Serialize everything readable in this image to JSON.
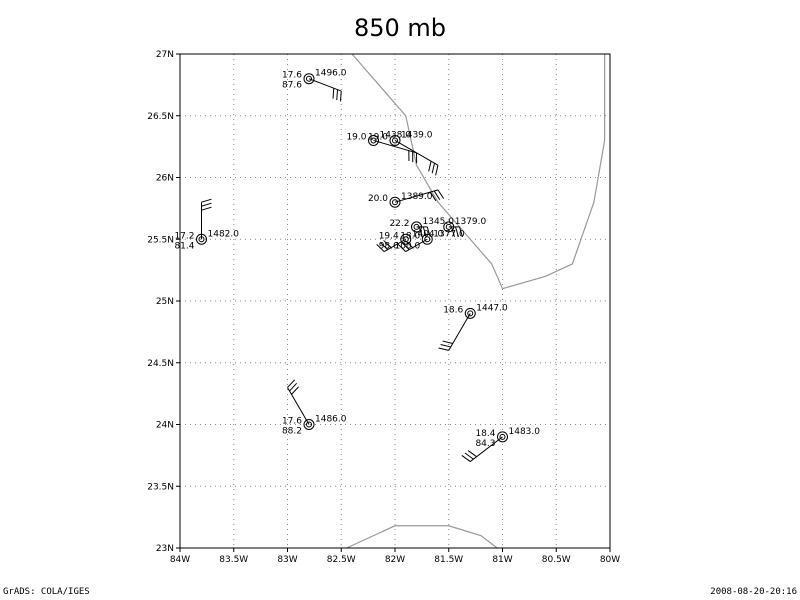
{
  "title": "850 mb",
  "footer": {
    "left": "GrADS: COLA/IGES",
    "right": "2008-08-20-20:16"
  },
  "axes": {
    "lon_ticks": [
      "84W",
      "83.5W",
      "83W",
      "82.5W",
      "82W",
      "81.5W",
      "81W",
      "80.5W",
      "80W"
    ],
    "lat_ticks": [
      "23N",
      "23.5N",
      "24N",
      "24.5N",
      "25N",
      "25.5N",
      "26N",
      "26.5N",
      "27N"
    ],
    "lon_range": [
      -84,
      -80
    ],
    "lat_range": [
      23,
      27
    ],
    "grid": true
  },
  "colors": {
    "coast": "#999999",
    "grid": "#888888",
    "ink": "#000000"
  },
  "stations": [
    {
      "lon": -82.8,
      "lat": 26.8,
      "left_top": "17.6",
      "left_bottom": "87.6",
      "right": "1496.0",
      "wind_to": [
        -82.5,
        26.7
      ]
    },
    {
      "lon": -82.2,
      "lat": 26.3,
      "left_top": "19.0",
      "left_bottom": "",
      "right": "1438.0",
      "wind_to": [
        -81.8,
        26.2
      ]
    },
    {
      "lon": -82.0,
      "lat": 26.3,
      "left_top": "19.0",
      "left_bottom": "",
      "right": "1439.0",
      "wind_to": [
        -81.6,
        26.1
      ]
    },
    {
      "lon": -82.0,
      "lat": 25.8,
      "left_top": "20.0",
      "left_bottom": "",
      "right": "1389.0",
      "wind_to": [
        -81.6,
        25.9
      ]
    },
    {
      "lon": -81.8,
      "lat": 25.6,
      "left_top": "22.2",
      "left_bottom": "",
      "right": "1345.0",
      "wind_to": [
        -81.7,
        25.6
      ]
    },
    {
      "lon": -81.5,
      "lat": 25.6,
      "left_top": "",
      "left_bottom": "",
      "right": "1379.0",
      "wind_to": [
        -81.4,
        25.6
      ]
    },
    {
      "lon": -81.9,
      "lat": 25.5,
      "left_top": "19.4",
      "left_bottom": "98.0",
      "right": "1404.0",
      "wind_to": [
        -82.1,
        25.4
      ]
    },
    {
      "lon": -81.7,
      "lat": 25.5,
      "left_top": "18.0",
      "left_bottom": "100.0",
      "right": "1377.0",
      "wind_to": [
        -81.9,
        25.4
      ]
    },
    {
      "lon": -83.8,
      "lat": 25.5,
      "left_top": "17.2",
      "left_bottom": "81.4",
      "right": "1482.0",
      "wind_to": [
        -83.8,
        25.8
      ]
    },
    {
      "lon": -81.3,
      "lat": 24.9,
      "left_top": "18.6",
      "left_bottom": "",
      "right": "1447.0",
      "wind_to": [
        -81.5,
        24.6
      ]
    },
    {
      "lon": -82.8,
      "lat": 24.0,
      "left_top": "17.6",
      "left_bottom": "88.2",
      "right": "1486.0",
      "wind_to": [
        -83.0,
        24.3
      ]
    },
    {
      "lon": -81.0,
      "lat": 23.9,
      "left_top": "18.4",
      "left_bottom": "84.3",
      "right": "1483.0",
      "wind_to": [
        -81.3,
        23.7
      ]
    }
  ],
  "coastlines": [
    [
      [
        -82.4,
        27.0
      ],
      [
        -82.1,
        26.7
      ],
      [
        -81.9,
        26.5
      ],
      [
        -81.8,
        26.1
      ],
      [
        -81.6,
        25.8
      ],
      [
        -81.3,
        25.5
      ],
      [
        -81.1,
        25.3
      ],
      [
        -81.0,
        25.1
      ],
      [
        -80.6,
        25.2
      ],
      [
        -80.35,
        25.3
      ],
      [
        -80.15,
        25.8
      ],
      [
        -80.05,
        26.3
      ],
      [
        -80.05,
        27.0
      ]
    ],
    [
      [
        -82.45,
        23.0
      ],
      [
        -82.0,
        23.18
      ],
      [
        -81.5,
        23.18
      ],
      [
        -81.2,
        23.1
      ],
      [
        -81.05,
        23.0
      ]
    ]
  ]
}
